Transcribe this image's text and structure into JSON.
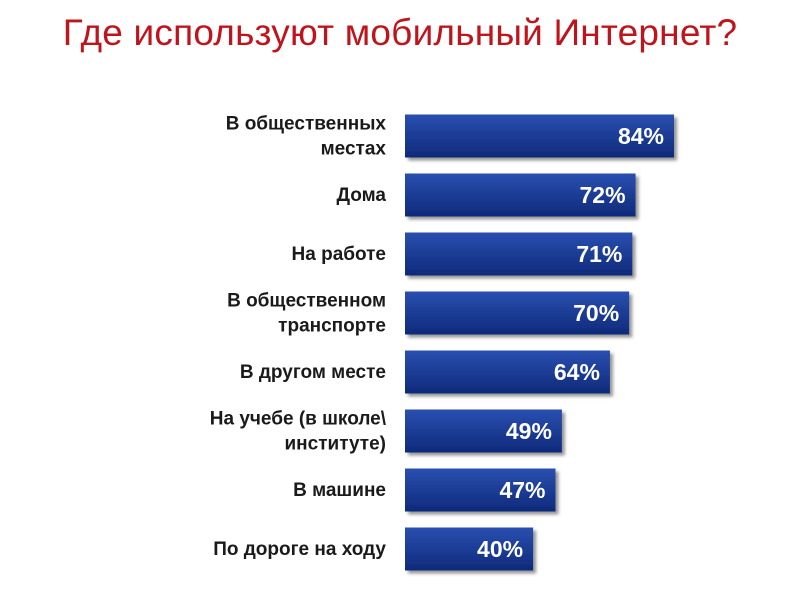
{
  "title": "Где используют мобильный Интернет?",
  "colors": {
    "title": "#c0141c",
    "bar_top": "#2a4fb0",
    "bar_bottom": "#0e2a7a",
    "bar_shadow": "#9a9a9a",
    "value_text": "#ffffff",
    "label_text": "#1a1a1a"
  },
  "chart_data": {
    "type": "bar",
    "orientation": "horizontal",
    "categories": [
      [
        "В общественных",
        "местах"
      ],
      [
        "Дома"
      ],
      [
        "На работе"
      ],
      [
        "В общественном",
        "транспорте"
      ],
      [
        "В другом месте"
      ],
      [
        "На учебе (в школе\\",
        "институте)"
      ],
      [
        "В машине"
      ],
      [
        "По дороге на ходу"
      ]
    ],
    "values": [
      84,
      72,
      71,
      70,
      64,
      49,
      47,
      40
    ],
    "value_labels": [
      "84%",
      "72%",
      "71%",
      "70%",
      "64%",
      "49%",
      "47%",
      "40%"
    ],
    "unit": "%",
    "xlim": [
      0,
      100
    ],
    "grid": false,
    "legend": "none"
  }
}
